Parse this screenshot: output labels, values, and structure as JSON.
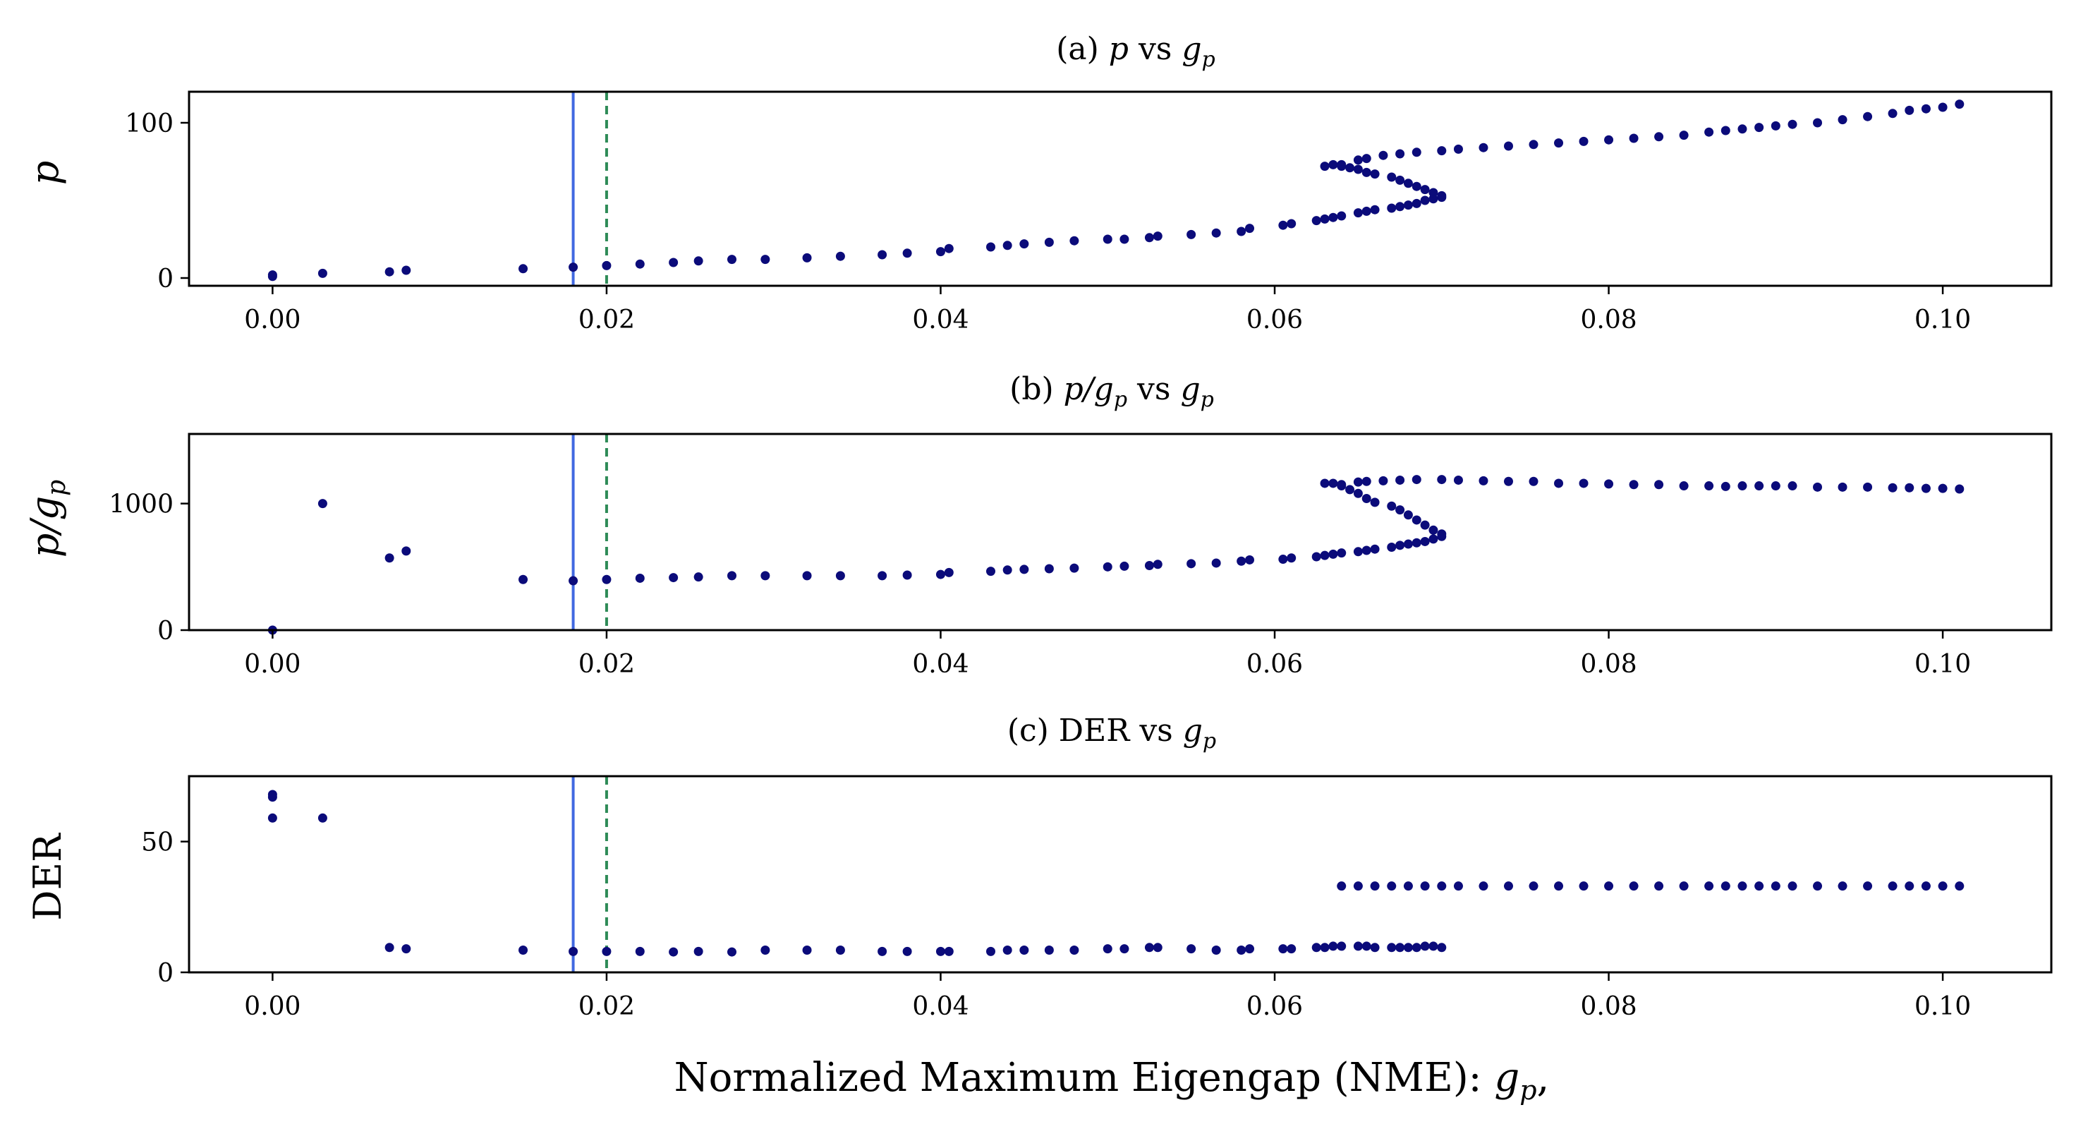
{
  "chart_data": [
    {
      "type": "scatter",
      "title": "(a) p vs g_p",
      "title_parts": {
        "prefix": "(a) ",
        "var": "p",
        "mid": " vs ",
        "base": "g",
        "sub": "p"
      },
      "ylabel": "p",
      "xlim": [
        -0.005,
        0.1065
      ],
      "ylim": [
        -5,
        120
      ],
      "xticks": [
        0.0,
        0.02,
        0.04,
        0.06,
        0.08,
        0.1
      ],
      "xtick_labels": [
        "0.00",
        "0.02",
        "0.04",
        "0.06",
        "0.08",
        "0.10"
      ],
      "yticks": [
        0,
        100
      ],
      "ytick_labels": [
        "0",
        "100"
      ],
      "vlines": [
        {
          "x": 0.018,
          "style": "solid",
          "color": "#4169e1"
        },
        {
          "x": 0.02,
          "style": "dashed",
          "color": "#2e8b57"
        }
      ],
      "marker_color": "#0b0b7a",
      "points": [
        [
          0.0,
          1
        ],
        [
          0.0,
          2
        ],
        [
          0.003,
          3
        ],
        [
          0.007,
          4
        ],
        [
          0.008,
          5
        ],
        [
          0.015,
          6
        ],
        [
          0.018,
          7
        ],
        [
          0.02,
          8
        ],
        [
          0.022,
          9
        ],
        [
          0.024,
          10
        ],
        [
          0.0255,
          11
        ],
        [
          0.0275,
          12
        ],
        [
          0.0295,
          12
        ],
        [
          0.032,
          13
        ],
        [
          0.034,
          14
        ],
        [
          0.0365,
          15
        ],
        [
          0.038,
          16
        ],
        [
          0.04,
          17
        ],
        [
          0.0405,
          19
        ],
        [
          0.043,
          20
        ],
        [
          0.044,
          21
        ],
        [
          0.045,
          22
        ],
        [
          0.0465,
          23
        ],
        [
          0.048,
          24
        ],
        [
          0.05,
          25
        ],
        [
          0.051,
          25
        ],
        [
          0.0525,
          26
        ],
        [
          0.053,
          27
        ],
        [
          0.055,
          28
        ],
        [
          0.0565,
          29
        ],
        [
          0.058,
          30
        ],
        [
          0.0585,
          32
        ],
        [
          0.0605,
          34
        ],
        [
          0.061,
          35
        ],
        [
          0.0625,
          37
        ],
        [
          0.063,
          38
        ],
        [
          0.0635,
          39
        ],
        [
          0.064,
          40
        ],
        [
          0.065,
          42
        ],
        [
          0.0655,
          43
        ],
        [
          0.066,
          44
        ],
        [
          0.067,
          45
        ],
        [
          0.0675,
          46
        ],
        [
          0.068,
          47
        ],
        [
          0.0685,
          48
        ],
        [
          0.069,
          50
        ],
        [
          0.0695,
          51
        ],
        [
          0.07,
          52
        ],
        [
          0.07,
          53
        ],
        [
          0.0695,
          55
        ],
        [
          0.069,
          57
        ],
        [
          0.0685,
          59
        ],
        [
          0.068,
          61
        ],
        [
          0.0675,
          63
        ],
        [
          0.067,
          65
        ],
        [
          0.066,
          67
        ],
        [
          0.0655,
          68
        ],
        [
          0.065,
          70
        ],
        [
          0.0645,
          71
        ],
        [
          0.064,
          72
        ],
        [
          0.063,
          72
        ],
        [
          0.0635,
          73
        ],
        [
          0.064,
          73
        ],
        [
          0.065,
          76
        ],
        [
          0.0655,
          77
        ],
        [
          0.0665,
          79
        ],
        [
          0.0675,
          80
        ],
        [
          0.0685,
          81
        ],
        [
          0.07,
          82
        ],
        [
          0.071,
          83
        ],
        [
          0.0725,
          84
        ],
        [
          0.074,
          85
        ],
        [
          0.0755,
          86
        ],
        [
          0.077,
          87
        ],
        [
          0.0785,
          88
        ],
        [
          0.08,
          89
        ],
        [
          0.0815,
          90
        ],
        [
          0.083,
          91
        ],
        [
          0.0845,
          92
        ],
        [
          0.086,
          94
        ],
        [
          0.087,
          95
        ],
        [
          0.088,
          96
        ],
        [
          0.089,
          97
        ],
        [
          0.09,
          98
        ],
        [
          0.091,
          99
        ],
        [
          0.0925,
          100
        ],
        [
          0.094,
          102
        ],
        [
          0.0955,
          104
        ],
        [
          0.097,
          106
        ],
        [
          0.098,
          108
        ],
        [
          0.099,
          109
        ],
        [
          0.1,
          110
        ],
        [
          0.101,
          112
        ]
      ]
    },
    {
      "type": "scatter",
      "title": "(b) p/g_p vs g_p",
      "title_parts": {
        "prefix": "(b) ",
        "var": "p/",
        "var_base": "g",
        "var_sub": "p",
        "mid": " vs ",
        "base": "g",
        "sub": "p"
      },
      "ylabel": "p/g_p",
      "xlim": [
        -0.005,
        0.1065
      ],
      "ylim": [
        0,
        1550
      ],
      "xticks": [
        0.0,
        0.02,
        0.04,
        0.06,
        0.08,
        0.1
      ],
      "xtick_labels": [
        "0.00",
        "0.02",
        "0.04",
        "0.06",
        "0.08",
        "0.10"
      ],
      "yticks": [
        0,
        1000
      ],
      "ytick_labels": [
        "0",
        "1000"
      ],
      "vlines": [
        {
          "x": 0.018,
          "style": "solid",
          "color": "#4169e1"
        },
        {
          "x": 0.02,
          "style": "dashed",
          "color": "#2e8b57"
        }
      ],
      "marker_color": "#0b0b7a",
      "points": [
        [
          0.0,
          0
        ],
        [
          0.003,
          1000
        ],
        [
          0.007,
          570
        ],
        [
          0.008,
          625
        ],
        [
          0.015,
          400
        ],
        [
          0.018,
          390
        ],
        [
          0.02,
          400
        ],
        [
          0.022,
          410
        ],
        [
          0.024,
          415
        ],
        [
          0.0255,
          420
        ],
        [
          0.0275,
          430
        ],
        [
          0.0295,
          430
        ],
        [
          0.032,
          430
        ],
        [
          0.034,
          430
        ],
        [
          0.0365,
          430
        ],
        [
          0.038,
          435
        ],
        [
          0.04,
          440
        ],
        [
          0.0405,
          455
        ],
        [
          0.043,
          465
        ],
        [
          0.044,
          475
        ],
        [
          0.045,
          480
        ],
        [
          0.0465,
          485
        ],
        [
          0.048,
          490
        ],
        [
          0.05,
          500
        ],
        [
          0.051,
          505
        ],
        [
          0.0525,
          510
        ],
        [
          0.053,
          520
        ],
        [
          0.055,
          525
        ],
        [
          0.0565,
          530
        ],
        [
          0.058,
          545
        ],
        [
          0.0585,
          555
        ],
        [
          0.0605,
          560
        ],
        [
          0.061,
          570
        ],
        [
          0.0625,
          580
        ],
        [
          0.063,
          590
        ],
        [
          0.0635,
          600
        ],
        [
          0.064,
          610
        ],
        [
          0.065,
          620
        ],
        [
          0.0655,
          630
        ],
        [
          0.066,
          640
        ],
        [
          0.067,
          655
        ],
        [
          0.0675,
          670
        ],
        [
          0.068,
          680
        ],
        [
          0.0685,
          690
        ],
        [
          0.069,
          700
        ],
        [
          0.0695,
          720
        ],
        [
          0.07,
          740
        ],
        [
          0.07,
          760
        ],
        [
          0.0695,
          790
        ],
        [
          0.069,
          830
        ],
        [
          0.0685,
          870
        ],
        [
          0.068,
          910
        ],
        [
          0.0675,
          950
        ],
        [
          0.067,
          980
        ],
        [
          0.066,
          1010
        ],
        [
          0.0655,
          1040
        ],
        [
          0.065,
          1080
        ],
        [
          0.0645,
          1110
        ],
        [
          0.064,
          1140
        ],
        [
          0.063,
          1160
        ],
        [
          0.0635,
          1160
        ],
        [
          0.064,
          1150
        ],
        [
          0.065,
          1170
        ],
        [
          0.0655,
          1175
        ],
        [
          0.0665,
          1180
        ],
        [
          0.0675,
          1185
        ],
        [
          0.0685,
          1190
        ],
        [
          0.07,
          1190
        ],
        [
          0.071,
          1185
        ],
        [
          0.0725,
          1180
        ],
        [
          0.074,
          1175
        ],
        [
          0.0755,
          1175
        ],
        [
          0.077,
          1160
        ],
        [
          0.0785,
          1160
        ],
        [
          0.08,
          1155
        ],
        [
          0.0815,
          1150
        ],
        [
          0.083,
          1150
        ],
        [
          0.0845,
          1140
        ],
        [
          0.086,
          1140
        ],
        [
          0.087,
          1135
        ],
        [
          0.088,
          1140
        ],
        [
          0.089,
          1140
        ],
        [
          0.09,
          1140
        ],
        [
          0.091,
          1140
        ],
        [
          0.0925,
          1130
        ],
        [
          0.094,
          1130
        ],
        [
          0.0955,
          1130
        ],
        [
          0.097,
          1125
        ],
        [
          0.098,
          1125
        ],
        [
          0.099,
          1120
        ],
        [
          0.1,
          1120
        ],
        [
          0.101,
          1115
        ]
      ]
    },
    {
      "type": "scatter",
      "title": "(c) DER vs g_p",
      "title_parts": {
        "prefix": "(c) DER vs ",
        "base": "g",
        "sub": "p"
      },
      "ylabel": "DER",
      "xlabel": "Normalized Maximum Eigengap (NME): g_p,",
      "xlabel_parts": {
        "prefix": "Normalized Maximum Eigengap (NME): ",
        "base": "g",
        "sub": "p",
        "suffix": ","
      },
      "xlim": [
        -0.005,
        0.1065
      ],
      "ylim": [
        0,
        75
      ],
      "xticks": [
        0.0,
        0.02,
        0.04,
        0.06,
        0.08,
        0.1
      ],
      "xtick_labels": [
        "0.00",
        "0.02",
        "0.04",
        "0.06",
        "0.08",
        "0.10"
      ],
      "yticks": [
        0,
        50
      ],
      "ytick_labels": [
        "0",
        "50"
      ],
      "vlines": [
        {
          "x": 0.018,
          "style": "solid",
          "color": "#4169e1"
        },
        {
          "x": 0.02,
          "style": "dashed",
          "color": "#2e8b57"
        }
      ],
      "marker_color": "#0b0b7a",
      "points": [
        [
          0.0,
          68
        ],
        [
          0.0,
          67
        ],
        [
          0.0,
          59
        ],
        [
          0.003,
          59
        ],
        [
          0.007,
          9.5
        ],
        [
          0.008,
          9
        ],
        [
          0.015,
          8.5
        ],
        [
          0.018,
          8
        ],
        [
          0.02,
          8
        ],
        [
          0.022,
          8
        ],
        [
          0.024,
          7.8
        ],
        [
          0.0255,
          8
        ],
        [
          0.0275,
          7.8
        ],
        [
          0.0295,
          8.5
        ],
        [
          0.032,
          8.5
        ],
        [
          0.034,
          8.5
        ],
        [
          0.0365,
          8
        ],
        [
          0.038,
          8
        ],
        [
          0.04,
          8
        ],
        [
          0.0405,
          8
        ],
        [
          0.043,
          8
        ],
        [
          0.044,
          8.5
        ],
        [
          0.045,
          8.5
        ],
        [
          0.0465,
          8.5
        ],
        [
          0.048,
          8.5
        ],
        [
          0.05,
          9
        ],
        [
          0.051,
          9
        ],
        [
          0.0525,
          9.5
        ],
        [
          0.053,
          9.5
        ],
        [
          0.055,
          9
        ],
        [
          0.0565,
          8.5
        ],
        [
          0.058,
          8.5
        ],
        [
          0.0585,
          9
        ],
        [
          0.0605,
          9
        ],
        [
          0.061,
          9
        ],
        [
          0.0625,
          9.5
        ],
        [
          0.063,
          9.5
        ],
        [
          0.0635,
          10
        ],
        [
          0.064,
          10
        ],
        [
          0.065,
          10
        ],
        [
          0.0655,
          10
        ],
        [
          0.066,
          9.5
        ],
        [
          0.067,
          9.5
        ],
        [
          0.0675,
          9.5
        ],
        [
          0.068,
          9.5
        ],
        [
          0.0685,
          9.5
        ],
        [
          0.069,
          10
        ],
        [
          0.0695,
          10
        ],
        [
          0.07,
          9.5
        ],
        [
          0.064,
          33
        ],
        [
          0.065,
          33
        ],
        [
          0.066,
          33
        ],
        [
          0.067,
          33
        ],
        [
          0.068,
          33
        ],
        [
          0.069,
          33
        ],
        [
          0.07,
          33
        ],
        [
          0.071,
          33
        ],
        [
          0.0725,
          33
        ],
        [
          0.074,
          33
        ],
        [
          0.0755,
          33
        ],
        [
          0.077,
          33
        ],
        [
          0.0785,
          33
        ],
        [
          0.08,
          33
        ],
        [
          0.0815,
          33
        ],
        [
          0.083,
          33
        ],
        [
          0.0845,
          33
        ],
        [
          0.086,
          33
        ],
        [
          0.087,
          33
        ],
        [
          0.088,
          33
        ],
        [
          0.089,
          33
        ],
        [
          0.09,
          33
        ],
        [
          0.091,
          33
        ],
        [
          0.0925,
          33
        ],
        [
          0.094,
          33
        ],
        [
          0.0955,
          33
        ],
        [
          0.097,
          33
        ],
        [
          0.098,
          33
        ],
        [
          0.099,
          33
        ],
        [
          0.1,
          33
        ],
        [
          0.101,
          33
        ]
      ]
    }
  ]
}
